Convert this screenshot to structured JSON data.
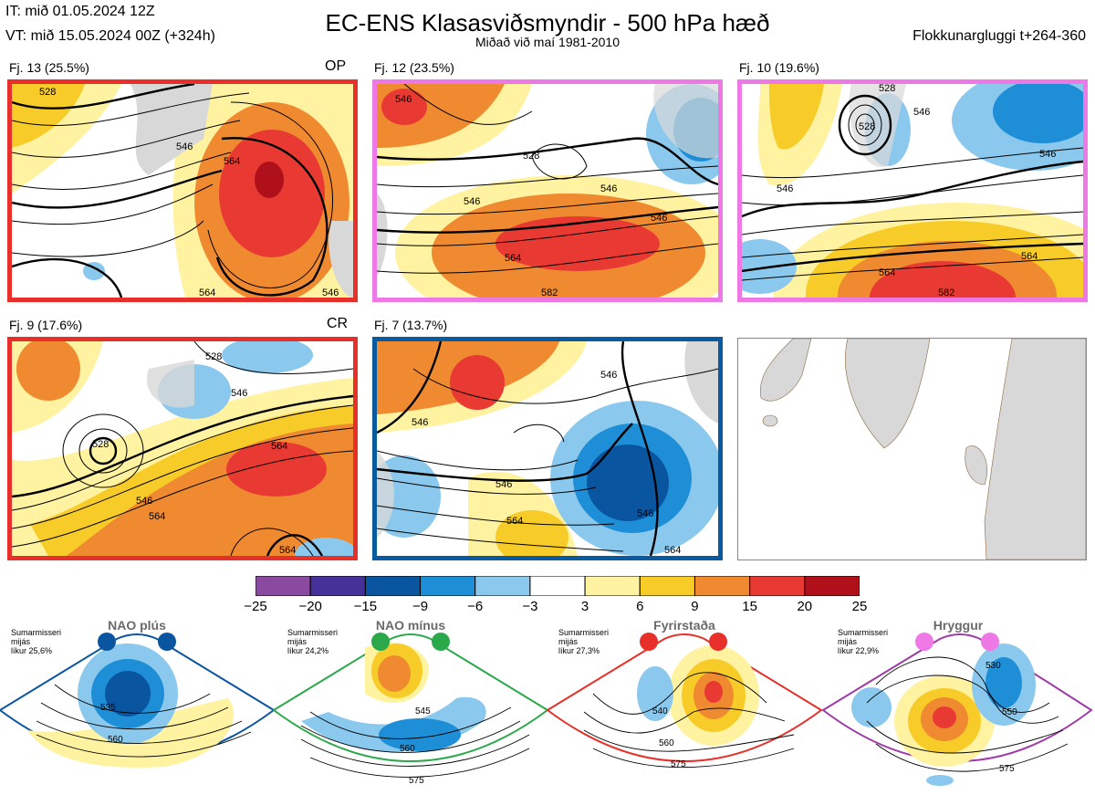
{
  "header": {
    "init_time": "IT: mið 01.05.2024 12Z",
    "valid_time": "VT: mið 15.05.2024 00Z  (+324h)",
    "title": "EC-ENS Klasasviðsmyndir - 500 hPa hæð",
    "subtitle": "Miðað við maí 1981-2010",
    "window": "Flokkunargluggi t+264-360"
  },
  "panels": [
    {
      "label": "Fj. 13 (25.5%)",
      "badge": "OP",
      "border_color": "#e8302a",
      "contours": [
        "528",
        "546",
        "564",
        "564",
        "546"
      ]
    },
    {
      "label": "Fj. 12 (23.5%)",
      "badge": "",
      "border_color": "#ee78e6",
      "contours": [
        "546",
        "528",
        "546",
        "546",
        "546",
        "564",
        "582"
      ]
    },
    {
      "label": "Fj. 10 (19.6%)",
      "badge": "",
      "border_color": "#ee78e6",
      "contours": [
        "528",
        "528",
        "546",
        "546",
        "546",
        "564",
        "564",
        "582"
      ]
    },
    {
      "label": "Fj. 9 (17.6%)",
      "badge": "CR",
      "border_color": "#e8302a",
      "contours": [
        "528",
        "528",
        "546",
        "546",
        "564",
        "564",
        "564"
      ]
    },
    {
      "label": "Fj. 7 (13.7%)",
      "badge": "",
      "border_color": "#0a5aa0",
      "contours": [
        "546",
        "546",
        "546",
        "564",
        "546",
        "564"
      ]
    }
  ],
  "colorbar": {
    "ticks": [
      "−25",
      "−20",
      "−15",
      "−9",
      "−6",
      "−3",
      "3",
      "6",
      "9",
      "15",
      "20",
      "25"
    ],
    "colors": [
      "#8a4aa0",
      "#46309a",
      "#0a55a0",
      "#1e8fd6",
      "#8ac8ee",
      "#ffffff",
      "#fff2a0",
      "#f8cc28",
      "#f08a30",
      "#e83a32",
      "#b0101a"
    ]
  },
  "regimes": [
    {
      "name": "NAO plús",
      "note": [
        "Sumarmisseri",
        "mijás",
        "líkur 25,6%"
      ],
      "color": "#0a55a0",
      "contours": [
        "535",
        "560"
      ]
    },
    {
      "name": "NAO mínus",
      "note": [
        "Sumarmisseri",
        "mijás",
        "líkur 24,2%"
      ],
      "color": "#2aa84a",
      "contours": [
        "545",
        "560",
        "575"
      ]
    },
    {
      "name": "Fyrirstaða",
      "note": [
        "Sumarmisseri",
        "mijás",
        "líkur 27,3%"
      ],
      "color": "#e8302a",
      "contours": [
        "540",
        "560",
        "575"
      ]
    },
    {
      "name": "Hryggur",
      "note": [
        "Sumarmisseri",
        "mijás",
        "líkur 22,9%"
      ],
      "color": "#a03aa8",
      "contours": [
        "530",
        "550",
        "575"
      ]
    }
  ],
  "chart_data": {
    "type": "heatmap",
    "title": "EC-ENS Klasasviðsmyndir - 500 hPa hæð",
    "subtitle": "Miðað við maí 1981-2010",
    "panels": [
      {
        "label": "Fj. 13 (25.5%)",
        "badge": "OP",
        "contour_labels": [
          528,
          546,
          564
        ]
      },
      {
        "label": "Fj. 12 (23.5%)",
        "contour_labels": [
          528,
          546,
          564,
          582
        ]
      },
      {
        "label": "Fj. 10 (19.6%)",
        "contour_labels": [
          528,
          546,
          564,
          582
        ]
      },
      {
        "label": "Fj. 9 (17.6%)",
        "badge": "CR",
        "contour_labels": [
          528,
          546,
          564
        ]
      },
      {
        "label": "Fj. 7 (13.7%)",
        "contour_labels": [
          546,
          564
        ]
      }
    ],
    "colorbar_boundaries": [
      -25,
      -20,
      -15,
      -9,
      -6,
      -3,
      3,
      6,
      9,
      15,
      20,
      25
    ],
    "regimes": [
      {
        "name": "NAO plús",
        "probability": "25,6%"
      },
      {
        "name": "NAO mínus",
        "probability": "24,2%"
      },
      {
        "name": "Fyrirstaða",
        "probability": "27,3%"
      },
      {
        "name": "Hryggur",
        "probability": "22,9%"
      }
    ]
  }
}
